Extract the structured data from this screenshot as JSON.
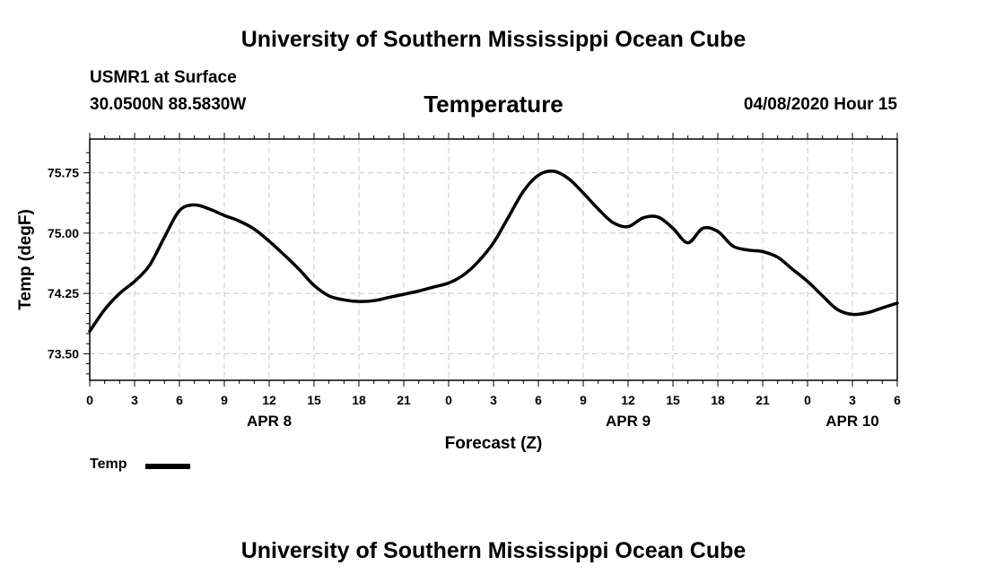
{
  "header": {
    "org_title": "University of Southern Mississippi Ocean Cube",
    "station": "USMR1 at Surface",
    "coords": "30.0500N 88.5830W",
    "chart_title": "Temperature",
    "datetime": "04/08/2020 Hour 15"
  },
  "footer": {
    "org_title": "University of Southern Mississippi Ocean Cube"
  },
  "chart_data": {
    "type": "line",
    "title": "Temperature",
    "xlabel": "Forecast (Z)",
    "ylabel": "Temp (degF)",
    "xlim": [
      0,
      54
    ],
    "ylim": [
      73.17,
      76.17
    ],
    "grid": true,
    "x_tick_labels": [
      "0",
      "3",
      "6",
      "9",
      "12",
      "15",
      "18",
      "21",
      "0",
      "3",
      "6",
      "9",
      "12",
      "15",
      "18",
      "21",
      "0",
      "3",
      "6"
    ],
    "y_ticks": [
      73.5,
      74.25,
      75.0,
      75.75
    ],
    "y_tick_labels": [
      "73.50",
      "74.25",
      "75.00",
      "75.75"
    ],
    "day_labels": [
      {
        "hour": 12,
        "label": "APR 8"
      },
      {
        "hour": 36,
        "label": "APR 9"
      },
      {
        "hour": 51,
        "label": "APR 10"
      }
    ],
    "legend": [
      {
        "label": "Temp",
        "color": "#000000"
      }
    ],
    "series": [
      {
        "name": "Temp",
        "x": [
          0,
          1,
          2,
          3,
          4,
          5,
          6,
          7,
          8,
          9,
          10,
          11,
          12,
          13,
          14,
          15,
          16,
          17,
          18,
          19,
          20,
          21,
          22,
          23,
          24,
          25,
          26,
          27,
          28,
          29,
          30,
          31,
          32,
          33,
          34,
          35,
          36,
          37,
          38,
          39,
          40,
          41,
          42,
          43,
          44,
          45,
          46,
          47,
          48,
          49,
          50,
          51,
          52,
          53,
          54
        ],
        "y": [
          73.78,
          74.05,
          74.25,
          74.4,
          74.6,
          74.95,
          75.28,
          75.35,
          75.3,
          75.22,
          75.15,
          75.05,
          74.9,
          74.73,
          74.55,
          74.35,
          74.22,
          74.17,
          74.15,
          74.16,
          74.2,
          74.24,
          74.28,
          74.33,
          74.38,
          74.48,
          74.65,
          74.88,
          75.2,
          75.52,
          75.72,
          75.77,
          75.68,
          75.5,
          75.3,
          75.13,
          75.08,
          75.19,
          75.2,
          75.06,
          74.88,
          75.06,
          75.02,
          74.84,
          74.79,
          74.77,
          74.7,
          74.55,
          74.4,
          74.22,
          74.05,
          73.99,
          74.01,
          74.07,
          74.13
        ]
      }
    ]
  }
}
